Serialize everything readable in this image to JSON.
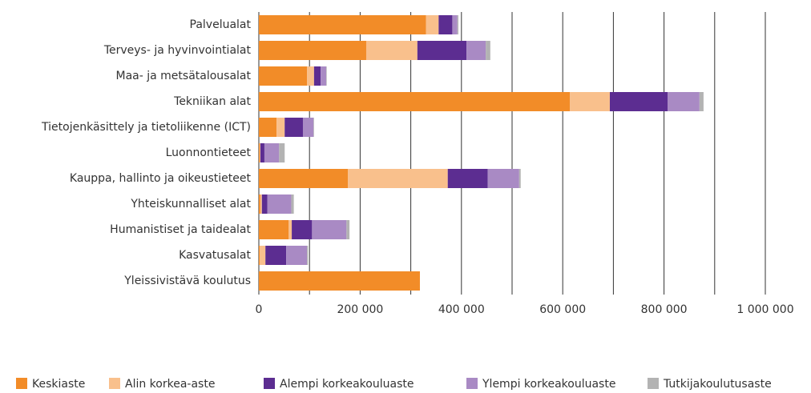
{
  "chart_data": {
    "type": "stacked_barh",
    "categories": [
      "Palvelualat",
      "Terveys- ja hyvinvointialat",
      "Maa- ja metsätalousalat",
      "Tekniikan alat",
      "Tietojenkäsittely ja tietoliikenne (ICT)",
      "Luonnontieteet",
      "Kauppa, hallinto ja oikeustieteet",
      "Yhteiskunnalliset alat",
      "Humanistiset ja taidealat",
      "Kasvatusalat",
      "Yleissivistävä koulutus"
    ],
    "series": [
      {
        "name": "Keskiaste",
        "color": "#f28c28",
        "values": [
          330000,
          212000,
          95000,
          614000,
          35000,
          2000,
          176000,
          3000,
          59000,
          2000,
          318000
        ]
      },
      {
        "name": "Alin korkea-aste",
        "color": "#f9c08c",
        "values": [
          25000,
          101000,
          14000,
          79000,
          16000,
          1000,
          197000,
          3000,
          6000,
          11000,
          0
        ]
      },
      {
        "name": "Alempi korkeakouluaste",
        "color": "#5c2d91",
        "values": [
          27000,
          97000,
          13000,
          114000,
          36000,
          8000,
          79000,
          11000,
          40000,
          41000,
          0
        ]
      },
      {
        "name": "Ylempi korkeakouluaste",
        "color": "#a98ac4",
        "values": [
          10000,
          38000,
          11000,
          63000,
          21000,
          29000,
          62000,
          47000,
          68000,
          41000,
          0
        ]
      },
      {
        "name": "Tutkijakoulutusaste",
        "color": "#b3b3b3",
        "values": [
          2000,
          9000,
          1000,
          8000,
          1000,
          11000,
          3000,
          5000,
          6000,
          2000,
          0
        ]
      }
    ],
    "xlim": [
      0,
      1000000
    ],
    "xticks": [
      0,
      {
        "value": 200000,
        "label": "200 000"
      },
      {
        "value": 400000,
        "label": "400 000"
      },
      {
        "value": 600000,
        "label": "600 000"
      },
      {
        "value": 800000,
        "label": "800 000"
      },
      {
        "value": 1000000,
        "label": "1 000 000"
      }
    ],
    "xgrid": [
      0,
      100000,
      200000,
      300000,
      400000,
      500000,
      600000,
      700000,
      800000,
      900000,
      1000000
    ],
    "legend": "bottom"
  }
}
